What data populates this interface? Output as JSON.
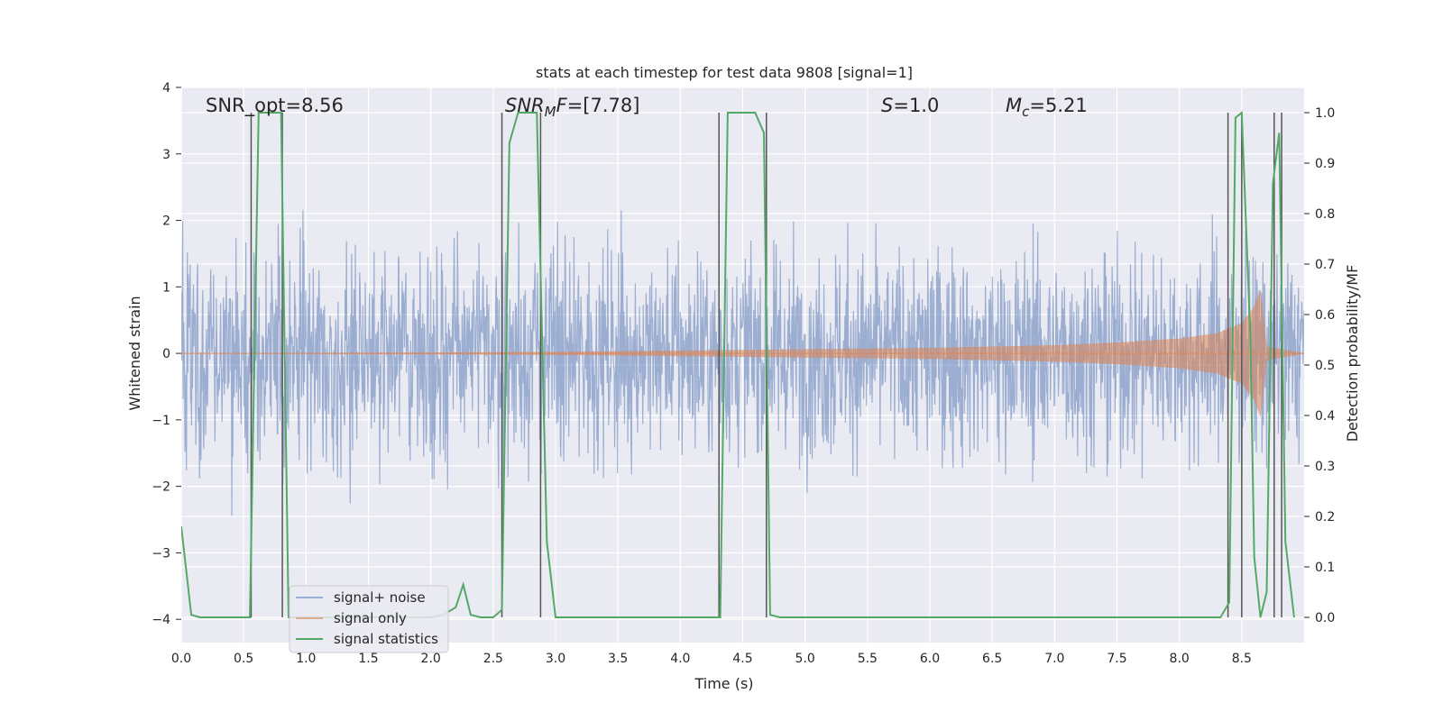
{
  "chart_data": {
    "type": "line",
    "title": "stats at each timestep for test data 9808 [signal=1]",
    "xlabel": "Time (s)",
    "ylabel": "Whitened strain",
    "y2label": "Detection probability/MF",
    "xlim": [
      0.0,
      9.0
    ],
    "ylim": [
      -4.35,
      4.0
    ],
    "y2lim": [
      -0.05,
      1.05
    ],
    "xticks": [
      "0.0",
      "0.5",
      "1.0",
      "1.5",
      "2.0",
      "2.5",
      "3.0",
      "3.5",
      "4.0",
      "4.5",
      "5.0",
      "5.5",
      "6.0",
      "6.5",
      "7.0",
      "7.5",
      "8.0",
      "8.5"
    ],
    "yticks": [
      "4",
      "3",
      "2",
      "1",
      "0",
      "−1",
      "−2",
      "−3",
      "−4"
    ],
    "y2ticks": [
      "1.0",
      "0.9",
      "0.8",
      "0.7",
      "0.6",
      "0.5",
      "0.4",
      "0.3",
      "0.2",
      "0.1",
      "0.0"
    ],
    "grid": true,
    "legend_position": "lower-left",
    "annotations": [
      {
        "text": "SNR_opt=8.56"
      },
      {
        "text": "SNR_MF=[7.78]"
      },
      {
        "text": "S=1.0"
      },
      {
        "text": "M_c=5.21"
      }
    ],
    "vlines_x": [
      0.56,
      0.81,
      2.57,
      2.88,
      4.31,
      4.69,
      8.39,
      8.5,
      8.76,
      8.82
    ],
    "series": [
      {
        "name": "signal+ noise",
        "color": "#4c72b0",
        "description": "whitened noisy strain, roughly within [-2.5, 3.5]"
      },
      {
        "name": "signal only",
        "color": "#dd8452",
        "description": "chirp waveform, amplitude growing to ~0.9 near t=8.6 s",
        "envelope_points": [
          [
            0.0,
            0.0
          ],
          [
            2.0,
            0.01
          ],
          [
            3.0,
            0.02
          ],
          [
            4.0,
            0.04
          ],
          [
            5.0,
            0.06
          ],
          [
            6.0,
            0.08
          ],
          [
            7.0,
            0.12
          ],
          [
            7.5,
            0.16
          ],
          [
            8.0,
            0.22
          ],
          [
            8.3,
            0.3
          ],
          [
            8.5,
            0.45
          ],
          [
            8.6,
            0.7
          ],
          [
            8.65,
            0.95
          ],
          [
            8.7,
            0.1
          ],
          [
            9.0,
            0.0
          ]
        ]
      },
      {
        "name": "signal statistics",
        "color": "#55a868",
        "axis": "right",
        "x": [
          0.0,
          0.08,
          0.15,
          0.55,
          0.62,
          0.8,
          0.86,
          1.0,
          1.5,
          2.0,
          2.1,
          2.2,
          2.26,
          2.32,
          2.4,
          2.5,
          2.57,
          2.63,
          2.7,
          2.85,
          2.93,
          3.0,
          3.5,
          4.0,
          4.32,
          4.38,
          4.6,
          4.67,
          4.72,
          4.8,
          5.0,
          6.0,
          7.0,
          8.0,
          8.33,
          8.4,
          8.45,
          8.5,
          8.57,
          8.6,
          8.65,
          8.7,
          8.75,
          8.8,
          8.85,
          8.92
        ],
        "y": [
          0.18,
          0.005,
          0.0,
          0.0,
          1.0,
          1.0,
          0.0,
          0.0,
          0.0,
          0.0,
          0.005,
          0.02,
          0.065,
          0.005,
          0.0,
          0.0,
          0.015,
          0.94,
          1.0,
          1.0,
          0.15,
          0.0,
          0.0,
          0.0,
          0.0,
          1.0,
          1.0,
          0.96,
          0.005,
          0.0,
          0.0,
          0.0,
          0.0,
          0.0,
          0.0,
          0.03,
          0.99,
          1.0,
          0.55,
          0.12,
          0.0,
          0.05,
          0.86,
          0.96,
          0.15,
          0.0
        ]
      }
    ]
  }
}
